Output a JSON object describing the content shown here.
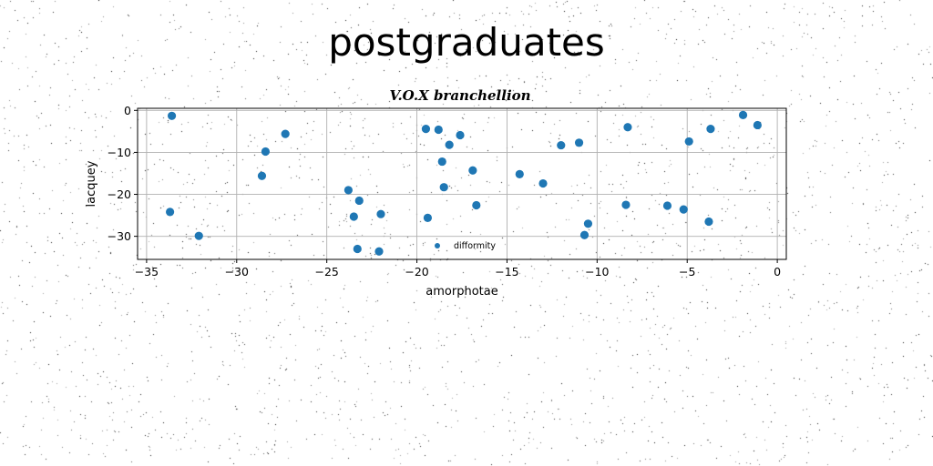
{
  "figure": {
    "suptitle": "postgraduates"
  },
  "chart_data": {
    "type": "scatter",
    "title": "V.O.X branchellion",
    "xlabel": "amorphotae",
    "ylabel": "lacquey",
    "xlim": [
      -35.5,
      0.5
    ],
    "ylim": [
      -35.5,
      0.5
    ],
    "xticks": [
      -35,
      -30,
      -25,
      -20,
      -15,
      -10,
      -5,
      0
    ],
    "yticks": [
      0,
      -10,
      -20,
      -30
    ],
    "grid": true,
    "legend_placement": "lower-center",
    "color": "#1f77b4",
    "series": [
      {
        "name": "difformity",
        "points": [
          [
            -33.6,
            -1.3
          ],
          [
            -33.7,
            -24.2
          ],
          [
            -32.1,
            -29.9
          ],
          [
            -28.6,
            -15.6
          ],
          [
            -28.4,
            -9.8
          ],
          [
            -27.3,
            -5.6
          ],
          [
            -23.8,
            -19.0
          ],
          [
            -23.5,
            -25.3
          ],
          [
            -23.2,
            -21.5
          ],
          [
            -23.3,
            -33.0
          ],
          [
            -22.1,
            -33.6
          ],
          [
            -22.0,
            -24.7
          ],
          [
            -19.5,
            -4.4
          ],
          [
            -19.4,
            -25.6
          ],
          [
            -18.8,
            -4.6
          ],
          [
            -18.6,
            -12.2
          ],
          [
            -18.5,
            -18.3
          ],
          [
            -18.2,
            -8.2
          ],
          [
            -17.6,
            -5.9
          ],
          [
            -16.9,
            -14.3
          ],
          [
            -16.7,
            -22.6
          ],
          [
            -14.3,
            -15.2
          ],
          [
            -13.0,
            -17.4
          ],
          [
            -12.0,
            -8.3
          ],
          [
            -11.0,
            -7.7
          ],
          [
            -10.7,
            -29.7
          ],
          [
            -10.5,
            -27.0
          ],
          [
            -8.4,
            -22.5
          ],
          [
            -8.3,
            -4.0
          ],
          [
            -6.1,
            -22.7
          ],
          [
            -5.2,
            -23.6
          ],
          [
            -4.9,
            -7.4
          ],
          [
            -3.7,
            -4.4
          ],
          [
            -3.8,
            -26.5
          ],
          [
            -1.9,
            -1.1
          ],
          [
            -1.1,
            -3.5
          ]
        ]
      }
    ]
  }
}
